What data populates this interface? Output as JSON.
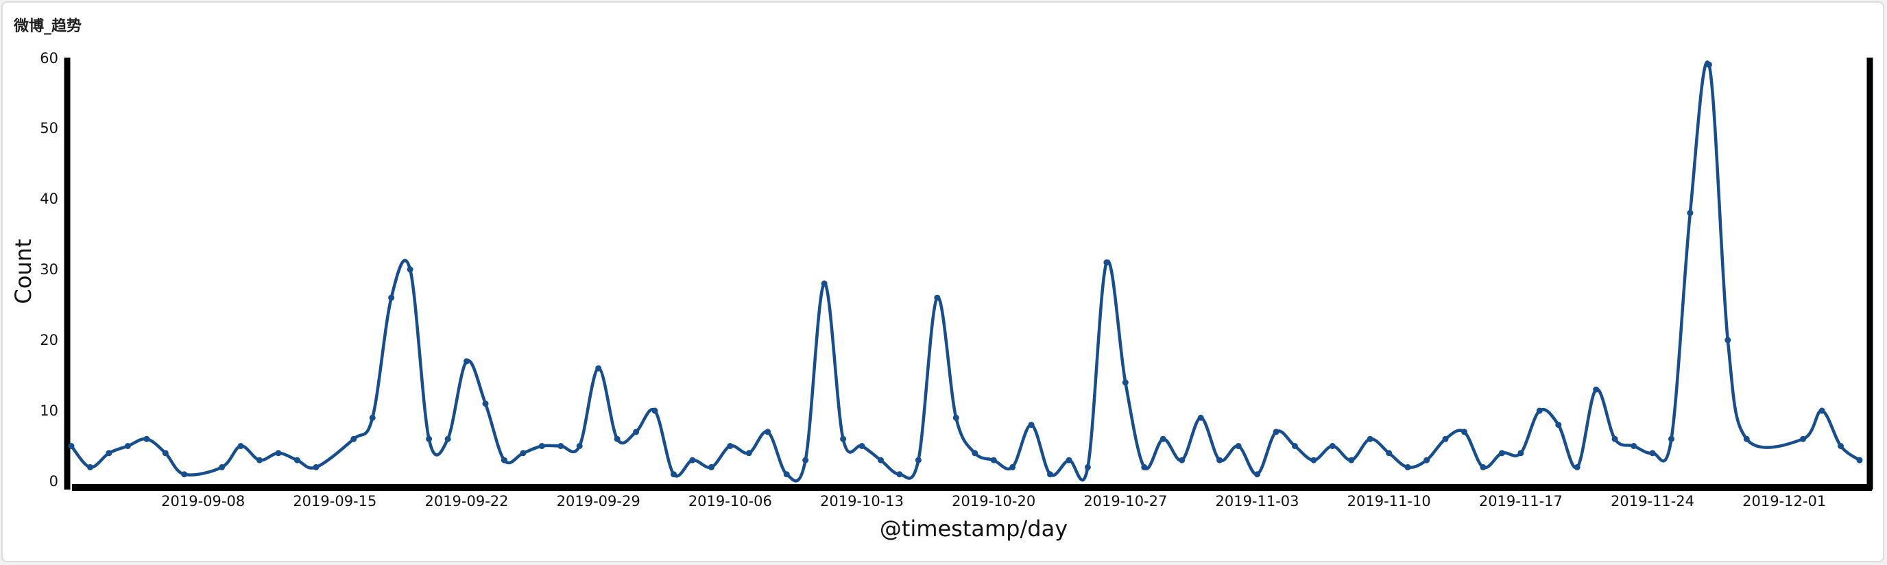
{
  "panel": {
    "title": "微博_趋势"
  },
  "chart_data": {
    "type": "line",
    "title": "",
    "xlabel": "@timestamp/day",
    "ylabel": "Count",
    "ylim": [
      0,
      60
    ],
    "yticks": [
      0,
      10,
      20,
      30,
      40,
      50,
      60
    ],
    "xtick_labels": [
      "2019-09-08",
      "2019-09-15",
      "2019-09-22",
      "2019-09-29",
      "2019-10-06",
      "2019-10-13",
      "2019-10-20",
      "2019-10-27",
      "2019-11-03",
      "2019-11-10",
      "2019-11-17",
      "2019-11-24",
      "2019-12-01"
    ],
    "x_range": [
      "2019-09-01",
      "2019-12-05"
    ],
    "line_color": "#174e8f",
    "grid": false,
    "x": [
      "2019-09-01",
      "2019-09-02",
      "2019-09-03",
      "2019-09-04",
      "2019-09-05",
      "2019-09-06",
      "2019-09-07",
      "2019-09-09",
      "2019-09-10",
      "2019-09-11",
      "2019-09-12",
      "2019-09-13",
      "2019-09-14",
      "2019-09-16",
      "2019-09-17",
      "2019-09-18",
      "2019-09-19",
      "2019-09-20",
      "2019-09-21",
      "2019-09-22",
      "2019-09-23",
      "2019-09-24",
      "2019-09-25",
      "2019-09-26",
      "2019-09-27",
      "2019-09-28",
      "2019-09-29",
      "2019-09-30",
      "2019-10-01",
      "2019-10-02",
      "2019-10-03",
      "2019-10-04",
      "2019-10-05",
      "2019-10-06",
      "2019-10-07",
      "2019-10-08",
      "2019-10-09",
      "2019-10-10",
      "2019-10-11",
      "2019-10-12",
      "2019-10-13",
      "2019-10-14",
      "2019-10-15",
      "2019-10-16",
      "2019-10-17",
      "2019-10-18",
      "2019-10-19",
      "2019-10-20",
      "2019-10-21",
      "2019-10-22",
      "2019-10-23",
      "2019-10-24",
      "2019-10-25",
      "2019-10-26",
      "2019-10-27",
      "2019-10-28",
      "2019-10-29",
      "2019-10-30",
      "2019-10-31",
      "2019-11-01",
      "2019-11-02",
      "2019-11-03",
      "2019-11-04",
      "2019-11-05",
      "2019-11-06",
      "2019-11-07",
      "2019-11-08",
      "2019-11-09",
      "2019-11-10",
      "2019-11-11",
      "2019-11-12",
      "2019-11-13",
      "2019-11-14",
      "2019-11-15",
      "2019-11-16",
      "2019-11-17",
      "2019-11-18",
      "2019-11-19",
      "2019-11-20",
      "2019-11-21",
      "2019-11-22",
      "2019-11-23",
      "2019-11-24",
      "2019-11-25",
      "2019-11-26",
      "2019-11-27",
      "2019-11-28",
      "2019-11-29",
      "2019-12-02",
      "2019-12-03",
      "2019-12-04",
      "2019-12-05"
    ],
    "values": [
      5,
      2,
      4,
      5,
      6,
      4,
      1,
      2,
      5,
      3,
      4,
      3,
      2,
      6,
      9,
      26,
      30,
      6,
      6,
      17,
      11,
      3,
      4,
      5,
      5,
      5,
      16,
      6,
      7,
      10,
      1,
      3,
      2,
      5,
      4,
      7,
      1,
      3,
      28,
      6,
      5,
      3,
      1,
      3,
      26,
      9,
      4,
      3,
      2,
      8,
      1,
      3,
      2,
      31,
      14,
      2,
      6,
      3,
      9,
      3,
      5,
      1,
      7,
      5,
      3,
      5,
      3,
      6,
      4,
      2,
      3,
      6,
      7,
      2,
      4,
      4,
      10,
      8,
      2,
      13,
      6,
      5,
      4,
      6,
      38,
      59,
      20,
      6,
      6,
      10,
      5,
      3
    ]
  }
}
